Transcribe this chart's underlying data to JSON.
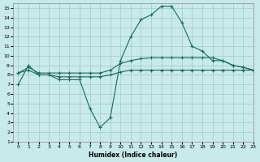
{
  "xlabel": "Humidex (Indice chaleur)",
  "xlim": [
    -0.5,
    23
  ],
  "ylim": [
    1,
    15.5
  ],
  "yticks": [
    1,
    2,
    3,
    4,
    5,
    6,
    7,
    8,
    9,
    10,
    11,
    12,
    13,
    14,
    15
  ],
  "xticks": [
    0,
    1,
    2,
    3,
    4,
    5,
    6,
    7,
    8,
    9,
    10,
    11,
    12,
    13,
    14,
    15,
    16,
    17,
    18,
    19,
    20,
    21,
    22,
    23
  ],
  "background_color": "#c8eaea",
  "grid_color": "#a0ccbb",
  "line_color": "#1a6b5a",
  "line1_x": [
    0,
    1,
    2,
    3,
    4,
    5,
    6,
    7,
    8,
    9,
    10,
    11,
    12,
    13,
    14,
    15,
    16,
    17,
    18,
    19,
    20,
    21,
    22,
    23
  ],
  "line1_y": [
    7.0,
    9.0,
    8.0,
    8.0,
    7.5,
    7.5,
    7.5,
    4.5,
    2.5,
    3.5,
    9.5,
    12.0,
    13.8,
    14.3,
    15.2,
    15.2,
    13.5,
    11.0,
    10.5,
    9.5,
    9.5,
    9.0,
    8.8,
    8.5
  ],
  "line2_x": [
    0,
    1,
    2,
    3,
    4,
    5,
    6,
    7,
    8,
    9,
    10,
    11,
    12,
    13,
    14,
    15,
    16,
    17,
    18,
    19,
    20,
    21,
    22,
    23
  ],
  "line2_y": [
    8.2,
    8.8,
    8.2,
    8.2,
    8.2,
    8.2,
    8.2,
    8.2,
    8.2,
    8.5,
    9.2,
    9.5,
    9.7,
    9.8,
    9.8,
    9.8,
    9.8,
    9.8,
    9.8,
    9.8,
    9.5,
    9.0,
    8.8,
    8.5
  ],
  "line3_x": [
    0,
    1,
    2,
    3,
    4,
    5,
    6,
    7,
    8,
    9,
    10,
    11,
    12,
    13,
    14,
    15,
    16,
    17,
    18,
    19,
    20,
    21,
    22,
    23
  ],
  "line3_y": [
    8.2,
    8.5,
    8.0,
    8.0,
    7.8,
    7.8,
    7.8,
    7.8,
    7.8,
    8.0,
    8.3,
    8.5,
    8.5,
    8.5,
    8.5,
    8.5,
    8.5,
    8.5,
    8.5,
    8.5,
    8.5,
    8.5,
    8.5,
    8.5
  ]
}
